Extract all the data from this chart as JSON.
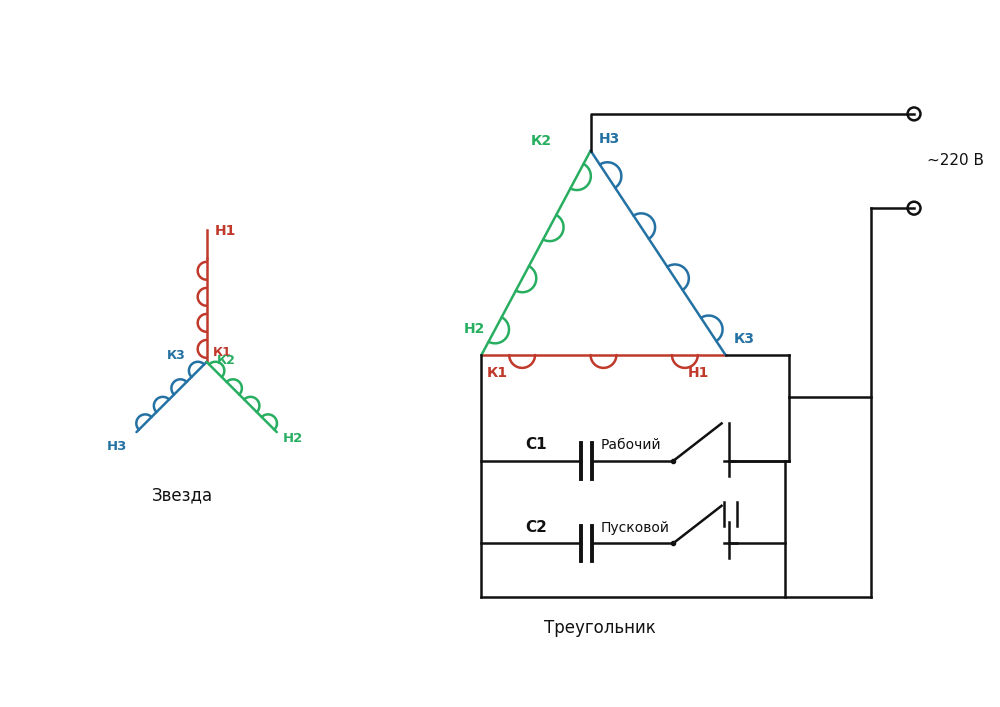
{
  "bg_color": "#ffffff",
  "red": "#c0392b",
  "green": "#27ae60",
  "blue": "#2471a3",
  "black": "#111111",
  "label_star": "Звезда",
  "label_triangle": "Треугольник",
  "voltage_label": "~220 В",
  "label_c1": "С1",
  "label_c1_desc": "Рабочий",
  "label_c2": "С2",
  "label_c2_desc": "Пусковой",
  "label_h1": "Н1",
  "label_k1": "К1",
  "label_h2": "Н2",
  "label_k2": "К2",
  "label_h3": "Н3",
  "label_k3": "К3"
}
